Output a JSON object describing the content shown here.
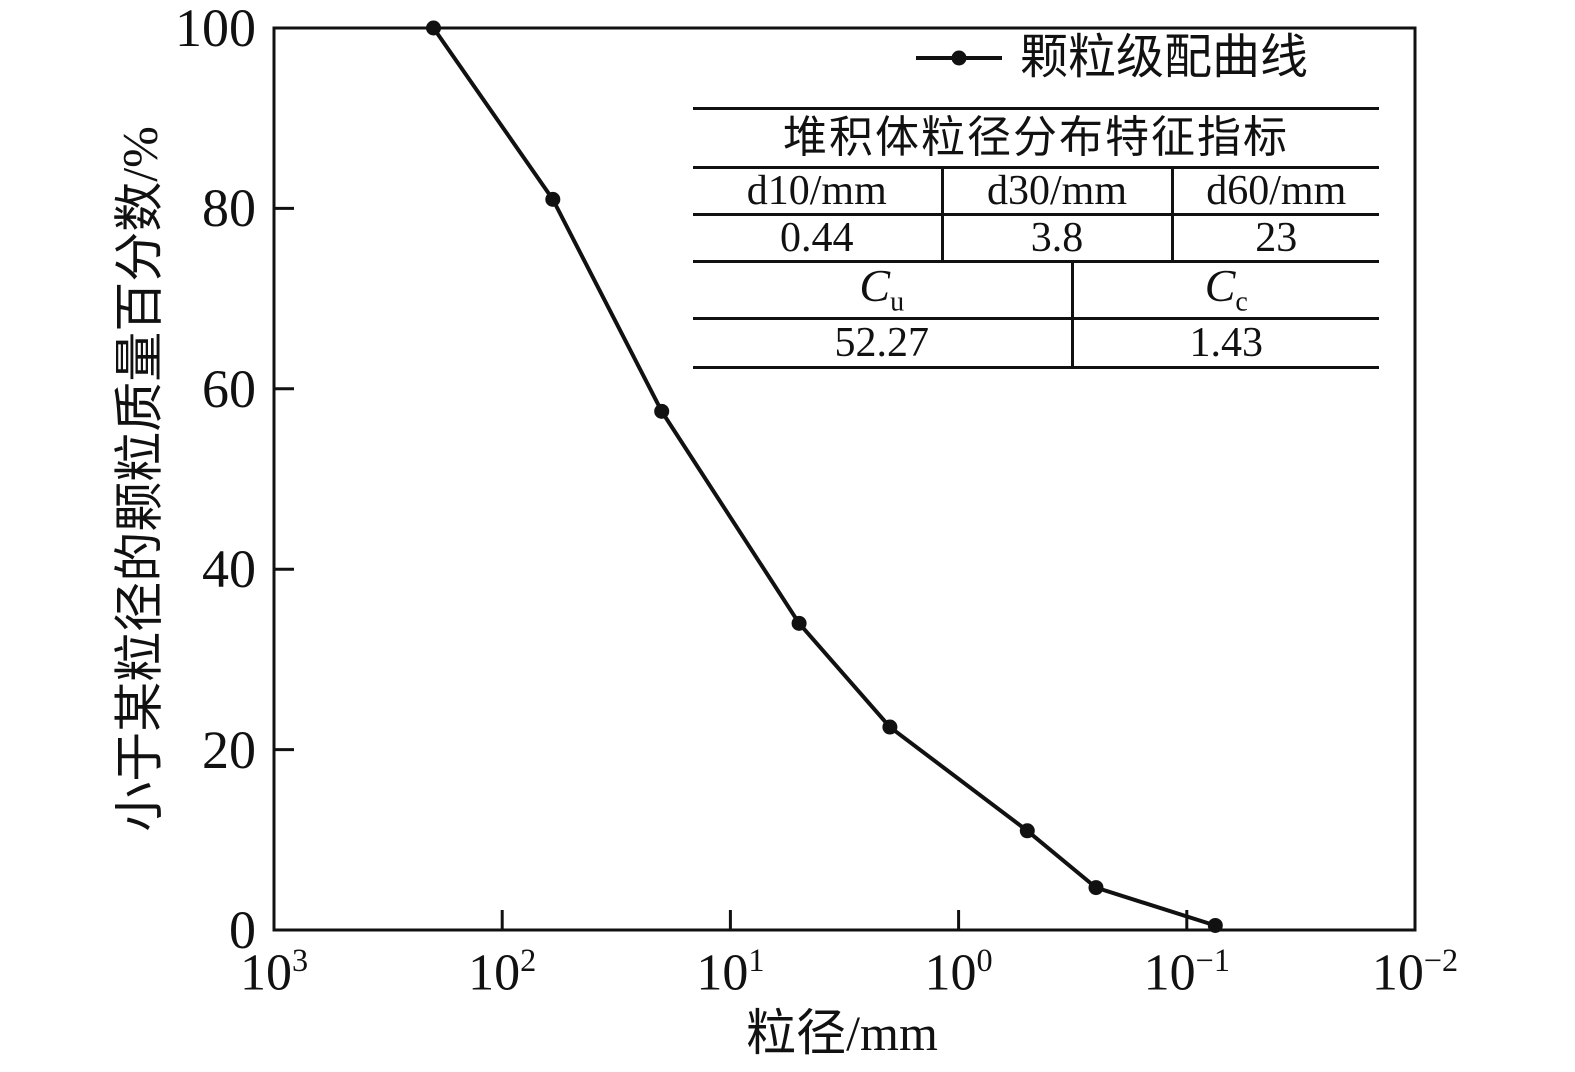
{
  "colors": {
    "ink": "#111111",
    "background": "#ffffff"
  },
  "legend": {
    "marker": "line-with-dot",
    "label": "颗粒级配曲线"
  },
  "table": {
    "title": "堆积体粒径分布特征指标",
    "headers": [
      "d10/mm",
      "d30/mm",
      "d60/mm"
    ],
    "values": [
      "0.44",
      "3.8",
      "23"
    ],
    "cu": {
      "base": "C",
      "sub": "u",
      "value": "52.27"
    },
    "cc": {
      "base": "C",
      "sub": "c",
      "value": "1.43"
    }
  },
  "chart_data": {
    "type": "line",
    "title": "",
    "xlabel": "粒径/mm",
    "ylabel": "小于某粒径的颗粒质量百分数/%",
    "x_scale": "log10-reversed",
    "xlim": [
      1000,
      0.01
    ],
    "ylim": [
      0,
      100
    ],
    "x_tick_base": "10",
    "x_tick_exponents": [
      3,
      2,
      1,
      0,
      -1,
      -2
    ],
    "x_tick_labels": [
      "10^3",
      "10^2",
      "10^1",
      "10^0",
      "10^-1",
      "10^-2"
    ],
    "y_ticks": [
      0,
      20,
      40,
      60,
      80,
      100
    ],
    "grid": false,
    "legend_position": "top-right-inside",
    "line_color": "#111111",
    "series": [
      {
        "name": "颗粒级配曲线",
        "points": [
          {
            "d_mm": 200,
            "percent": 100
          },
          {
            "d_mm": 60,
            "percent": 81
          },
          {
            "d_mm": 20,
            "percent": 57.5
          },
          {
            "d_mm": 5,
            "percent": 34
          },
          {
            "d_mm": 2,
            "percent": 22.5
          },
          {
            "d_mm": 0.5,
            "percent": 11
          },
          {
            "d_mm": 0.25,
            "percent": 4.7
          },
          {
            "d_mm": 0.075,
            "percent": 0.5
          }
        ]
      }
    ]
  }
}
